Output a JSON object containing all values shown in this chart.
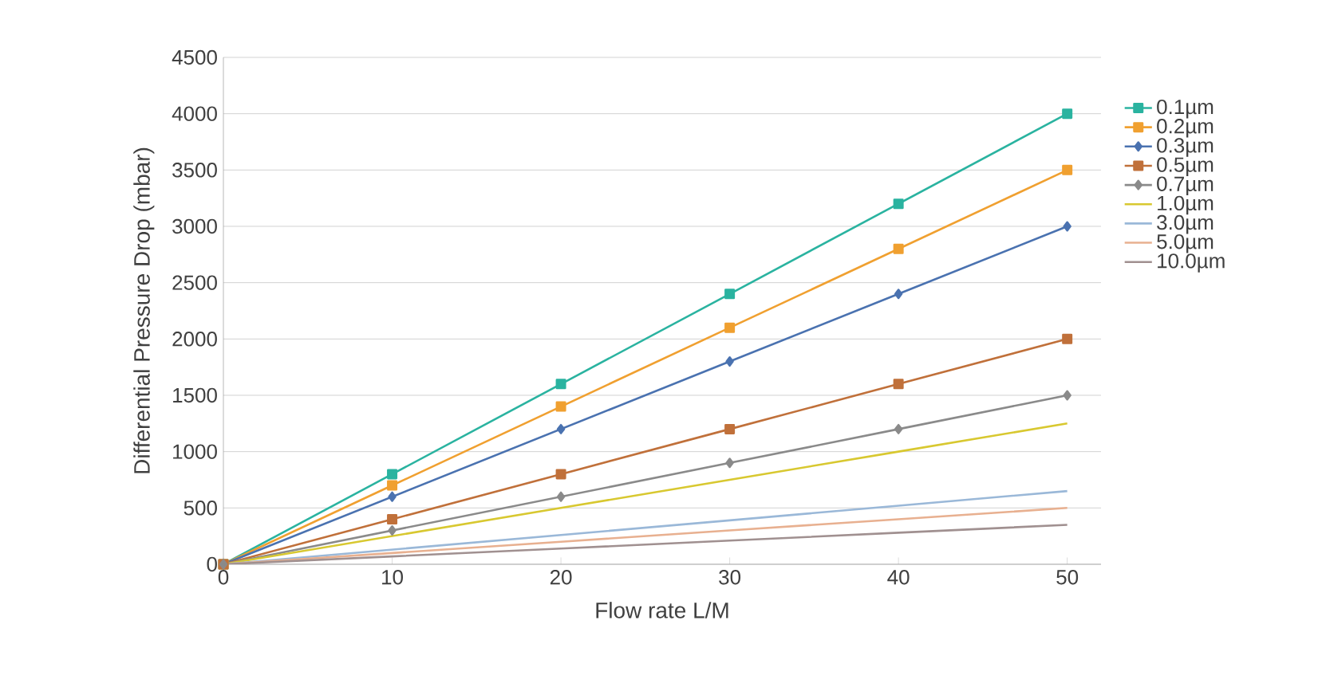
{
  "chart_data": {
    "type": "line",
    "xlabel": "Flow rate L/M",
    "ylabel": "Differential Pressure Drop (mbar)",
    "x": [
      0,
      10,
      20,
      30,
      40,
      50
    ],
    "xlim": [
      0,
      52
    ],
    "xticks": [
      0,
      10,
      20,
      30,
      40,
      50
    ],
    "ylim": [
      0,
      4500
    ],
    "yticks": [
      0,
      500,
      1000,
      1500,
      2000,
      2500,
      3000,
      3500,
      4000,
      4500
    ],
    "grid": "y",
    "legend": "right",
    "series": [
      {
        "name": "0.1µm",
        "color": "#2ab3a0",
        "marker": "square",
        "values": [
          0,
          800,
          1600,
          2400,
          3200,
          4000
        ]
      },
      {
        "name": "0.2µm",
        "color": "#f0a030",
        "marker": "square",
        "values": [
          0,
          700,
          1400,
          2100,
          2800,
          3500
        ]
      },
      {
        "name": "0.3µm",
        "color": "#4a72b0",
        "marker": "diamond",
        "values": [
          0,
          600,
          1200,
          1800,
          2400,
          3000
        ]
      },
      {
        "name": "0.5µm",
        "color": "#c0703a",
        "marker": "square",
        "values": [
          0,
          400,
          800,
          1200,
          1600,
          2000
        ]
      },
      {
        "name": "0.7µm",
        "color": "#8a8a8a",
        "marker": "diamond",
        "values": [
          0,
          300,
          600,
          900,
          1200,
          1500
        ]
      },
      {
        "name": "1.0µm",
        "color": "#d8c830",
        "marker": "none",
        "values": [
          0,
          250,
          500,
          750,
          1000,
          1250
        ]
      },
      {
        "name": "3.0µm",
        "color": "#9ab8d8",
        "marker": "none",
        "values": [
          0,
          130,
          260,
          390,
          520,
          650
        ]
      },
      {
        "name": "5.0µm",
        "color": "#e8b090",
        "marker": "none",
        "values": [
          0,
          100,
          200,
          300,
          400,
          500
        ]
      },
      {
        "name": "10.0µm",
        "color": "#a09090",
        "marker": "none",
        "values": [
          0,
          70,
          140,
          210,
          280,
          350
        ]
      }
    ]
  }
}
